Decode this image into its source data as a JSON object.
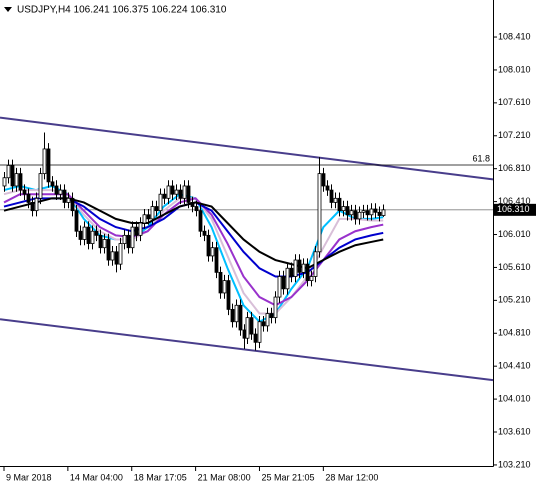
{
  "chart_data": {
    "type": "candlestick",
    "title": "USDJPY,H4  106.241 106.375 106.224 106.310",
    "open": [
      106.6,
      106.7,
      106.85,
      106.6,
      106.75,
      106.55,
      106.5,
      106.4,
      106.3,
      106.45,
      106.75,
      107.05,
      106.65,
      106.6,
      106.5,
      106.55,
      106.4,
      106.45,
      106.3,
      106.05,
      105.95,
      106.1,
      105.9,
      106.05,
      106.0,
      105.85,
      105.95,
      105.7,
      105.8,
      105.65,
      105.9,
      106.0,
      105.85,
      106.1,
      106.0,
      106.15,
      106.25,
      106.2,
      106.35,
      106.3,
      106.5,
      106.45,
      106.6,
      106.5,
      106.55,
      106.45,
      106.6,
      106.4,
      106.35,
      106.3,
      106.05,
      106.0,
      105.75,
      105.85,
      105.55,
      105.3,
      105.45,
      105.1,
      104.95,
      105.15,
      104.85,
      104.75,
      105.0,
      104.8,
      104.7,
      104.95,
      104.9,
      105.05,
      105.0,
      105.25,
      105.5,
      105.35,
      105.6,
      105.5,
      105.7,
      105.55,
      105.65,
      105.45,
      105.5,
      105.8,
      106.75,
      106.6,
      106.55,
      106.4,
      106.45,
      106.3,
      106.35,
      106.25,
      106.3,
      106.2,
      106.28,
      106.3,
      106.25,
      106.32,
      106.28,
      106.241
    ],
    "high": [
      106.77,
      106.92,
      106.92,
      106.82,
      106.82,
      106.62,
      106.57,
      106.47,
      106.52,
      106.82,
      107.25,
      107.12,
      106.72,
      106.67,
      106.62,
      106.62,
      106.52,
      106.52,
      106.37,
      106.12,
      106.17,
      106.17,
      106.12,
      106.12,
      106.07,
      106.02,
      106.02,
      105.87,
      105.87,
      105.97,
      106.07,
      106.07,
      106.17,
      106.17,
      106.22,
      106.32,
      106.32,
      106.42,
      106.42,
      106.57,
      106.57,
      106.67,
      106.67,
      106.62,
      106.62,
      106.67,
      106.67,
      106.47,
      106.42,
      106.37,
      106.12,
      106.07,
      105.92,
      105.92,
      105.62,
      105.52,
      105.52,
      105.17,
      105.22,
      105.22,
      104.92,
      105.07,
      105.07,
      104.87,
      105.02,
      105.02,
      105.12,
      105.12,
      105.32,
      105.57,
      105.57,
      105.67,
      105.67,
      105.77,
      105.77,
      105.72,
      105.72,
      105.57,
      105.87,
      106.95,
      106.82,
      106.67,
      106.62,
      106.52,
      106.52,
      106.42,
      106.42,
      106.37,
      106.37,
      106.35,
      106.37,
      106.37,
      106.39,
      106.39,
      106.35,
      106.375
    ],
    "low": [
      106.53,
      106.63,
      106.53,
      106.53,
      106.48,
      106.43,
      106.33,
      106.23,
      106.23,
      106.38,
      106.68,
      106.58,
      106.53,
      106.43,
      106.43,
      106.33,
      106.33,
      106.23,
      105.98,
      105.88,
      105.88,
      105.83,
      105.83,
      105.93,
      105.78,
      105.78,
      105.63,
      105.63,
      105.55,
      105.58,
      105.83,
      105.78,
      105.78,
      105.93,
      105.93,
      106.08,
      106.13,
      106.13,
      106.23,
      106.23,
      106.38,
      106.38,
      106.43,
      106.43,
      106.38,
      106.38,
      106.33,
      106.28,
      106.23,
      105.98,
      105.93,
      105.68,
      105.68,
      105.48,
      105.23,
      105.23,
      105.03,
      104.88,
      104.88,
      104.78,
      104.62,
      104.68,
      104.73,
      104.6,
      104.63,
      104.83,
      104.83,
      104.93,
      104.93,
      105.18,
      105.28,
      105.28,
      105.43,
      105.43,
      105.48,
      105.48,
      105.38,
      105.38,
      105.43,
      105.73,
      106.53,
      106.48,
      106.33,
      106.33,
      106.23,
      106.23,
      106.18,
      106.18,
      106.13,
      106.13,
      106.21,
      106.18,
      106.18,
      106.21,
      106.17,
      106.224
    ],
    "close": [
      106.7,
      106.85,
      106.6,
      106.75,
      106.55,
      106.5,
      106.4,
      106.3,
      106.45,
      106.75,
      107.05,
      106.65,
      106.6,
      106.5,
      106.55,
      106.4,
      106.45,
      106.3,
      106.05,
      105.95,
      106.1,
      105.9,
      106.05,
      106.0,
      105.85,
      105.95,
      105.7,
      105.8,
      105.65,
      105.9,
      106.0,
      105.85,
      106.1,
      106.0,
      106.15,
      106.25,
      106.2,
      106.35,
      106.3,
      106.5,
      106.45,
      106.6,
      106.5,
      106.55,
      106.45,
      106.6,
      106.4,
      106.35,
      106.3,
      106.05,
      106.0,
      105.75,
      105.85,
      105.55,
      105.3,
      105.45,
      105.1,
      104.95,
      105.15,
      104.85,
      104.75,
      105.0,
      104.8,
      104.7,
      104.95,
      104.9,
      105.05,
      105.0,
      105.25,
      105.5,
      105.35,
      105.6,
      105.5,
      105.7,
      105.55,
      105.65,
      105.45,
      105.5,
      105.8,
      106.75,
      106.6,
      106.55,
      106.4,
      106.45,
      106.3,
      106.35,
      106.25,
      106.3,
      106.2,
      106.28,
      106.3,
      106.25,
      106.32,
      106.28,
      106.241,
      106.31
    ],
    "bull_color": "#ffffff",
    "bear_color": "#000000",
    "wick_color": "#000000",
    "series": [
      {
        "color": "#00bfff",
        "x": [
          0,
          4,
          8,
          12,
          16,
          20,
          24,
          28,
          32,
          36,
          40,
          44,
          48,
          52,
          56,
          60,
          64,
          68,
          72,
          76,
          80,
          84,
          88,
          92,
          95
        ],
        "values": [
          106.55,
          106.6,
          106.55,
          106.6,
          106.5,
          106.2,
          106.0,
          105.95,
          105.95,
          106.1,
          106.35,
          106.5,
          106.45,
          106.1,
          105.6,
          105.15,
          104.95,
          105.05,
          105.35,
          105.6,
          106.1,
          106.3,
          106.2,
          106.2,
          106.22
        ]
      },
      {
        "color": "#d8bfd8",
        "x": [
          0,
          4,
          8,
          12,
          16,
          20,
          24,
          28,
          32,
          36,
          40,
          44,
          48,
          52,
          56,
          60,
          64,
          68,
          72,
          76,
          80,
          84,
          88,
          92,
          95
        ],
        "values": [
          106.5,
          106.55,
          106.55,
          106.55,
          106.5,
          106.25,
          106.05,
          105.95,
          105.95,
          106.05,
          106.3,
          106.45,
          106.45,
          106.2,
          105.75,
          105.3,
          105.05,
          105.05,
          105.25,
          105.5,
          105.85,
          106.2,
          106.2,
          106.18,
          106.18
        ]
      },
      {
        "color": "#9932cc",
        "x": [
          0,
          4,
          8,
          12,
          16,
          20,
          24,
          28,
          32,
          36,
          40,
          44,
          48,
          52,
          56,
          60,
          64,
          68,
          72,
          76,
          80,
          84,
          88,
          92,
          95
        ],
        "values": [
          106.4,
          106.5,
          106.5,
          106.5,
          106.5,
          106.3,
          106.1,
          106.0,
          105.98,
          106.05,
          106.25,
          106.4,
          106.45,
          106.25,
          105.9,
          105.5,
          105.25,
          105.15,
          105.25,
          105.45,
          105.7,
          105.95,
          106.05,
          106.1,
          106.13
        ]
      },
      {
        "color": "#0000cd",
        "x": [
          0,
          4,
          8,
          12,
          16,
          20,
          24,
          28,
          32,
          36,
          40,
          44,
          48,
          52,
          56,
          60,
          64,
          68,
          72,
          76,
          80,
          84,
          88,
          92,
          95
        ],
        "values": [
          106.35,
          106.4,
          106.45,
          106.45,
          106.45,
          106.35,
          106.2,
          106.1,
          106.05,
          106.1,
          106.2,
          106.35,
          106.4,
          106.3,
          106.05,
          105.8,
          105.6,
          105.5,
          105.5,
          105.55,
          105.7,
          105.85,
          105.95,
          106.0,
          106.03
        ]
      },
      {
        "color": "#000000",
        "x": [
          0,
          4,
          8,
          12,
          16,
          20,
          24,
          28,
          32,
          36,
          40,
          44,
          48,
          52,
          56,
          60,
          64,
          68,
          72,
          76,
          80,
          84,
          88,
          92,
          95
        ],
        "values": [
          106.3,
          106.35,
          106.4,
          106.45,
          106.45,
          106.4,
          106.3,
          106.2,
          106.15,
          106.15,
          106.25,
          106.35,
          106.4,
          106.35,
          106.15,
          105.95,
          105.8,
          105.7,
          105.65,
          105.6,
          105.7,
          105.8,
          105.88,
          105.92,
          105.95
        ]
      }
    ],
    "channel_lines": [
      {
        "color": "#483d8b",
        "x": [
          -1,
          122.5
        ],
        "values": [
          107.43,
          106.68
        ]
      },
      {
        "color": "#483d8b",
        "x": [
          -1,
          122.5
        ],
        "values": [
          104.98,
          104.24
        ]
      }
    ],
    "level_line": {
      "value": 106.855,
      "label": "61.8",
      "color": "#000000"
    },
    "price_line": {
      "value": 106.31,
      "label": "106.310",
      "color": "#808080"
    },
    "xlim": [
      -1,
      122.5
    ],
    "ylim": [
      103.197,
      108.86
    ],
    "xticks": [
      {
        "value": 0,
        "label": "9 Mar 2018"
      },
      {
        "value": 16,
        "label": "14 Mar 04:00"
      },
      {
        "value": 32,
        "label": "18 Mar 17:05"
      },
      {
        "value": 48,
        "label": "21 Mar 08:00"
      },
      {
        "value": 64,
        "label": "25 Mar 21:05"
      },
      {
        "value": 80,
        "label": "28 Mar 12:00"
      }
    ],
    "yticks": [
      {
        "value": 108.41,
        "label": "108.410"
      },
      {
        "value": 108.01,
        "label": "108.010"
      },
      {
        "value": 107.61,
        "label": "107.610"
      },
      {
        "value": 107.21,
        "label": "107.210"
      },
      {
        "value": 106.81,
        "label": "106.810"
      },
      {
        "value": 106.41,
        "label": "106.410"
      },
      {
        "value": 106.01,
        "label": "106.010"
      },
      {
        "value": 105.61,
        "label": "105.610"
      },
      {
        "value": 105.21,
        "label": "105.210"
      },
      {
        "value": 104.81,
        "label": "104.810"
      },
      {
        "value": 104.41,
        "label": "104.410"
      },
      {
        "value": 104.01,
        "label": "104.010"
      },
      {
        "value": 103.61,
        "label": "103.610"
      },
      {
        "value": 103.21,
        "label": "103.210"
      }
    ]
  }
}
